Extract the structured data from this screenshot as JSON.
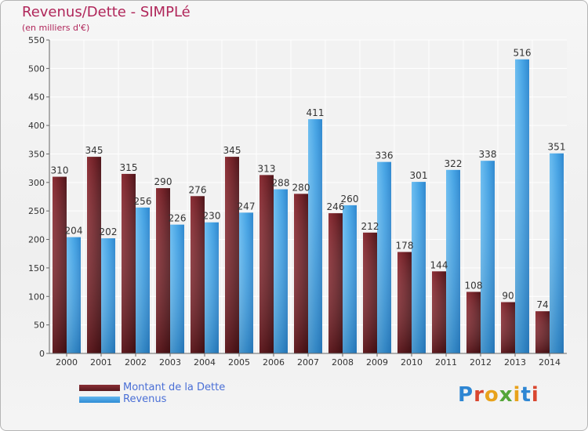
{
  "title": "Revenus/Dette - SIMPLé",
  "subtitle": "(en milliers d'€)",
  "colors": {
    "debt": "#6e2026",
    "revenue": "#3a9ae0",
    "title": "#b0265a",
    "legend_text": "#4a6fd6"
  },
  "legend": [
    {
      "label": "Montant de la Dette",
      "key": "debt"
    },
    {
      "label": "Revenus",
      "key": "revenue"
    }
  ],
  "logo": {
    "text": "Proxiti"
  },
  "chart_data": {
    "type": "bar",
    "title": "Revenus/Dette - SIMPLé",
    "ylabel": "(en milliers d'€)",
    "xlabel": "",
    "ylim": [
      0,
      550
    ],
    "yticks": [
      0,
      50,
      100,
      150,
      200,
      250,
      300,
      350,
      400,
      450,
      500,
      550
    ],
    "grid": true,
    "legend_position": "bottom-left",
    "categories": [
      "2000",
      "2001",
      "2002",
      "2003",
      "2004",
      "2005",
      "2006",
      "2007",
      "2008",
      "2009",
      "2010",
      "2011",
      "2012",
      "2013",
      "2014"
    ],
    "series": [
      {
        "name": "Montant de la Dette",
        "values": [
          310,
          345,
          315,
          290,
          276,
          345,
          313,
          280,
          246,
          212,
          178,
          144,
          108,
          90,
          74
        ]
      },
      {
        "name": "Revenus",
        "values": [
          204,
          202,
          256,
          226,
          230,
          247,
          288,
          411,
          260,
          336,
          301,
          322,
          338,
          516,
          351
        ]
      }
    ]
  }
}
